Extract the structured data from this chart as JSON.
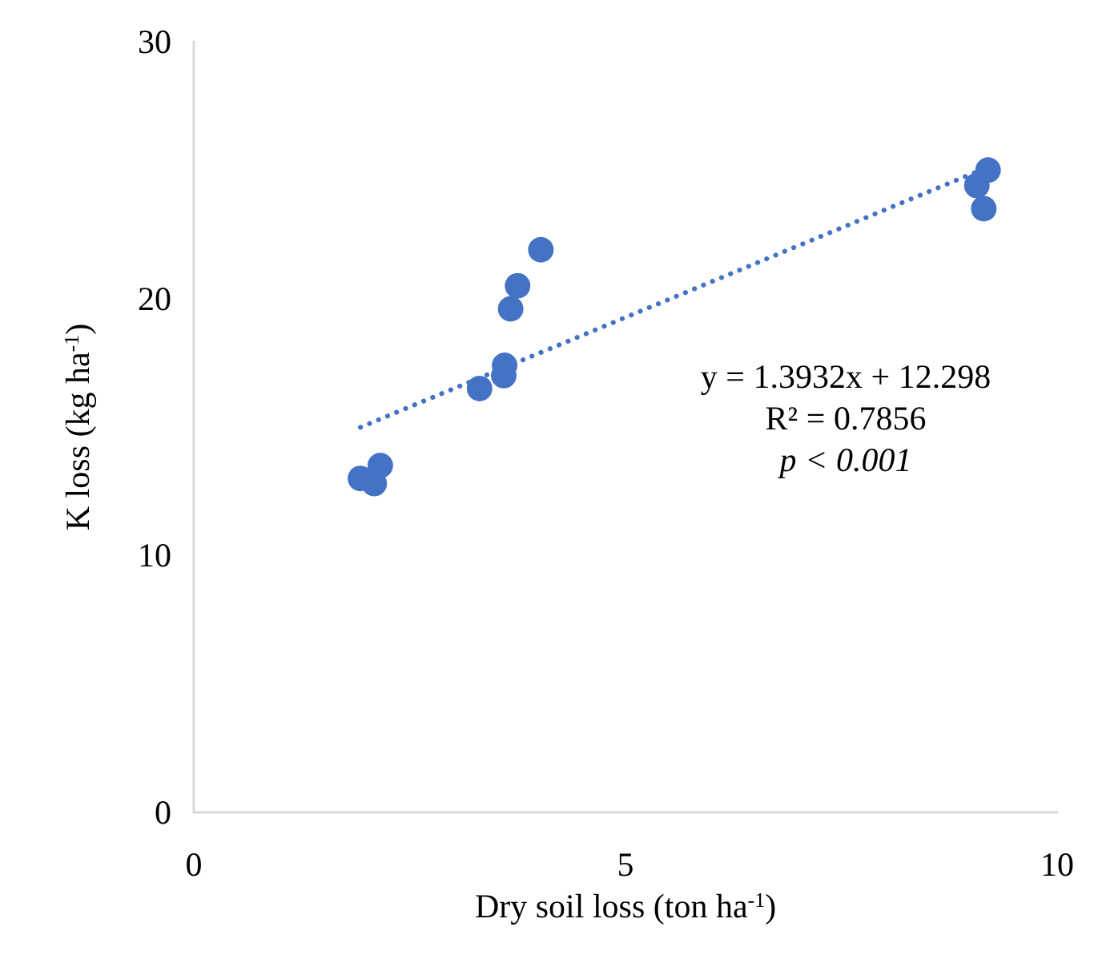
{
  "chart_data": {
    "type": "scatter",
    "xlabel": "Dry soil loss (ton ha$^{-1}$)",
    "ylabel": "K loss (kg ha$^{-1}$)",
    "xlim": [
      0,
      10
    ],
    "xticks": [
      0,
      5,
      10
    ],
    "ylim": [
      0,
      30
    ],
    "yticks": [
      0,
      10,
      20,
      30
    ],
    "grid": false,
    "marker": "circle",
    "series": [
      {
        "color": "#4472c4",
        "x": [
          1.93,
          2.09,
          2.16,
          3.31,
          3.59,
          3.6,
          3.67,
          3.75,
          4.02,
          9.07,
          9.2,
          9.15
        ],
        "values": [
          13.0,
          12.8,
          13.5,
          16.5,
          17.0,
          17.4,
          19.6,
          20.5,
          21.9,
          24.4,
          25.0,
          23.5
        ]
      },
      {
        "type": "line",
        "color": "#4472c4",
        "line_style": "dotted",
        "marker": "none",
        "x": [
          1.93,
          9.2
        ],
        "values": [
          14.99,
          25.12
        ]
      }
    ],
    "annotations": [
      "y = 1.3932x + 12.298",
      "R² = 0.7856",
      "p < 0.001"
    ]
  }
}
